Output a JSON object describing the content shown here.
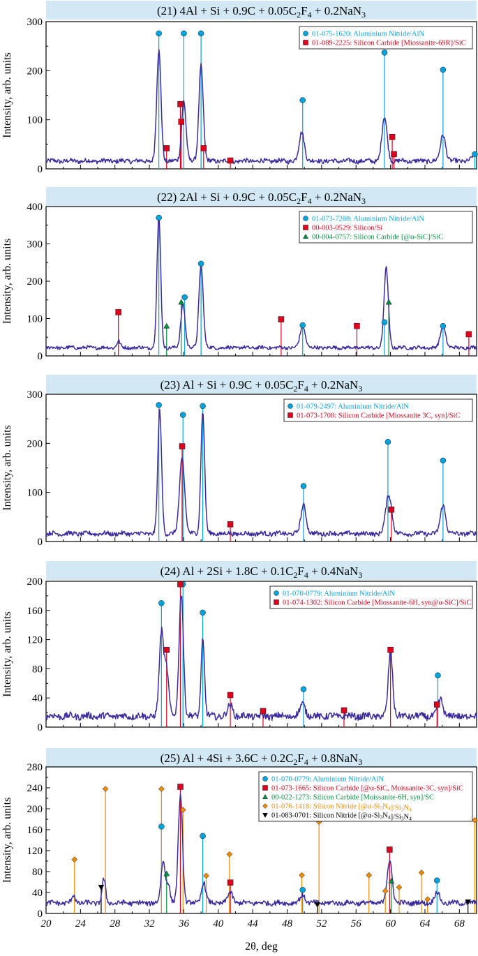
{
  "figure": {
    "xlabel": "2θ, deg"
  },
  "colors": {
    "trace": "#3b2b9e",
    "title_bg": "#d3e8f5",
    "AlN": "#00a3dd",
    "SiC": "#e0001b",
    "Si": "#e0001b",
    "SiC_green": "#00923f",
    "Si3N4_orange": "#f08a00",
    "Si3N4_black": "#000000"
  },
  "chart_data": [
    {
      "type": "line",
      "title": "(21) 4Al + Si + 0.9C + 0.05C2F4 + 0.2NaN3",
      "title_parts": [
        "(21) 4Al + Si + 0.9C + 0.05C",
        "2",
        "F",
        "4",
        " + 0.2NaN",
        "3"
      ],
      "ylabel": "Intensity, arb. units",
      "xlim": [
        20,
        70
      ],
      "ylim": [
        0,
        300
      ],
      "yticks": [
        0,
        100,
        200,
        300
      ],
      "xticks": [
        20,
        24,
        28,
        32,
        36,
        40,
        44,
        48,
        52,
        56,
        60,
        64,
        68
      ],
      "show_xticklabels": false,
      "baseline": 16,
      "peaks": [
        [
          33.1,
          240,
          0.25
        ],
        [
          36.0,
          140,
          0.25
        ],
        [
          38.0,
          212,
          0.25
        ],
        [
          49.7,
          75,
          0.3
        ],
        [
          59.3,
          105,
          0.3
        ],
        [
          66.1,
          70,
          0.3
        ],
        [
          69.8,
          30,
          0.3
        ]
      ],
      "legend": [
        {
          "text": "01-075-1620: Aluminium Nitride/AlN",
          "marker": "circle",
          "color": "#00a3dd"
        },
        {
          "text": "01-089-2225: Silicon Carbide [Miossanite-69R]/SiC",
          "marker": "square",
          "color": "#e0001b"
        }
      ],
      "references": [
        {
          "marker": "circle",
          "color": "#00a3dd",
          "lines": [
            [
              33.1,
              276
            ],
            [
              36.0,
              276
            ],
            [
              38.0,
              276
            ],
            [
              49.8,
              140
            ],
            [
              59.3,
              237
            ],
            [
              66.1,
              202
            ],
            [
              69.8,
              30
            ]
          ]
        },
        {
          "marker": "square",
          "color": "#e0001b",
          "lines": [
            [
              34.0,
              42
            ],
            [
              35.6,
              132
            ],
            [
              35.7,
              96
            ],
            [
              38.3,
              42
            ],
            [
              41.4,
              17
            ],
            [
              60.2,
              65
            ],
            [
              60.4,
              30
            ]
          ]
        }
      ]
    },
    {
      "type": "line",
      "title": "(22) 2Al + Si + 0.9C + 0.05C2F4 + 0.2NaN3",
      "title_parts": [
        "(22) 2Al + Si + 0.9C + 0.05C",
        "2",
        "F",
        "4",
        " + 0.2NaN",
        "3"
      ],
      "ylabel": "Intensity, arb. units",
      "xlim": [
        20,
        70
      ],
      "ylim": [
        0,
        400
      ],
      "yticks": [
        0,
        100,
        200,
        300,
        400
      ],
      "xticks": [
        20,
        24,
        28,
        32,
        36,
        40,
        44,
        48,
        52,
        56,
        60,
        64,
        68
      ],
      "show_xticklabels": false,
      "baseline": 22,
      "peaks": [
        [
          33.1,
          370,
          0.22
        ],
        [
          35.9,
          140,
          0.25
        ],
        [
          38.0,
          245,
          0.25
        ],
        [
          49.8,
          80,
          0.3
        ],
        [
          59.5,
          235,
          0.25
        ],
        [
          66.1,
          80,
          0.3
        ],
        [
          28.4,
          40,
          0.2
        ]
      ],
      "legend": [
        {
          "text": "01-073-7288: Aluminium Nitride/AlN",
          "marker": "circle",
          "color": "#00a3dd"
        },
        {
          "text": "00-003-0529: Silicon/Si",
          "marker": "square",
          "color": "#e0001b"
        },
        {
          "text": "00-004-0757: Silicon Carbide [@α-SiC]/SiC",
          "marker": "triangle",
          "color": "#00923f"
        }
      ],
      "references": [
        {
          "marker": "circle",
          "color": "#00a3dd",
          "lines": [
            [
              33.1,
              370
            ],
            [
              36.1,
              157
            ],
            [
              38.0,
              247
            ],
            [
              49.8,
              82
            ],
            [
              59.3,
              90
            ],
            [
              66.1,
              80
            ]
          ]
        },
        {
          "marker": "square",
          "color": "#e0001b",
          "lines": [
            [
              28.4,
              117
            ],
            [
              47.3,
              98
            ],
            [
              56.1,
              80
            ],
            [
              69.1,
              58
            ]
          ]
        },
        {
          "marker": "triangle",
          "color": "#00923f",
          "lines": [
            [
              34.0,
              80
            ],
            [
              35.7,
              144
            ],
            [
              59.8,
              144
            ]
          ]
        }
      ]
    },
    {
      "type": "line",
      "title": "(23) Al + Si + 0.9C + 0.05C2F4 + 0.2NaN3",
      "title_parts": [
        "(23) Al + Si + 0.9C + 0.05C",
        "2",
        "F",
        "4",
        " + 0.2NaN",
        "3"
      ],
      "ylabel": "Intensity, arb. units",
      "xlim": [
        20,
        70
      ],
      "ylim": [
        0,
        300
      ],
      "yticks": [
        0,
        100,
        200,
        300
      ],
      "xticks": [
        20,
        24,
        28,
        32,
        36,
        40,
        44,
        48,
        52,
        56,
        60,
        64,
        68
      ],
      "show_xticklabels": false,
      "baseline": 16,
      "peaks": [
        [
          33.2,
          265,
          0.22
        ],
        [
          35.8,
          170,
          0.3
        ],
        [
          38.2,
          265,
          0.22
        ],
        [
          49.9,
          75,
          0.3
        ],
        [
          59.8,
          95,
          0.35
        ],
        [
          66.1,
          75,
          0.3
        ]
      ],
      "legend": [
        {
          "text": "01-079-2497: Aluminium Nitride/AlN",
          "marker": "circle",
          "color": "#00a3dd"
        },
        {
          "text": "01-073-1708: Silicon Carbide [Miossanite 3C, syn]/SiC",
          "marker": "square",
          "color": "#e0001b"
        }
      ],
      "references": [
        {
          "marker": "circle",
          "color": "#00a3dd",
          "lines": [
            [
              33.1,
              278
            ],
            [
              35.9,
              258
            ],
            [
              38.2,
              276
            ],
            [
              49.9,
              113
            ],
            [
              59.7,
              203
            ],
            [
              66.1,
              165
            ]
          ]
        },
        {
          "marker": "square",
          "color": "#e0001b",
          "lines": [
            [
              35.8,
              194
            ],
            [
              41.4,
              35
            ],
            [
              60.1,
              65
            ]
          ]
        }
      ]
    },
    {
      "type": "line",
      "title": "(24) Al + 2Si + 1.8C + 0.1C2F4 + 0.4NaN3",
      "title_parts": [
        "(24) Al + 2Si + 1.8C + 0.1C",
        "2",
        "F",
        "4",
        " + 0.4NaN",
        "3"
      ],
      "ylabel": "Intensity, arb. units",
      "xlim": [
        20,
        70
      ],
      "ylim": [
        0,
        200
      ],
      "yticks": [
        0,
        40,
        80,
        120,
        160,
        200
      ],
      "xticks": [
        20,
        24,
        28,
        32,
        36,
        40,
        44,
        48,
        52,
        56,
        60,
        64,
        68
      ],
      "show_xticklabels": false,
      "baseline": 15,
      "peaks": [
        [
          33.4,
          130,
          0.25
        ],
        [
          34.0,
          80,
          0.25
        ],
        [
          35.7,
          185,
          0.25
        ],
        [
          38.2,
          120,
          0.2
        ],
        [
          41.4,
          30,
          0.3
        ],
        [
          49.8,
          33,
          0.3
        ],
        [
          60.0,
          105,
          0.25
        ],
        [
          65.8,
          38,
          0.3
        ]
      ],
      "legend": [
        {
          "text": "01-070-0779: Aluminium Nitride/AlN",
          "marker": "circle",
          "color": "#00a3dd"
        },
        {
          "text": "01-074-1302: Silicon Carbide [Miossanite-6H, syn@α-SiC]/SiC",
          "marker": "square",
          "color": "#e0001b"
        }
      ],
      "references": [
        {
          "marker": "circle",
          "color": "#00a3dd",
          "lines": [
            [
              33.4,
              170
            ],
            [
              35.9,
              196
            ],
            [
              38.2,
              157
            ],
            [
              49.9,
              52
            ],
            [
              65.5,
              71
            ]
          ]
        },
        {
          "marker": "square",
          "color": "#e0001b",
          "lines": [
            [
              34.0,
              106
            ],
            [
              35.6,
              196
            ],
            [
              41.4,
              44
            ],
            [
              45.2,
              22
            ],
            [
              54.6,
              23
            ],
            [
              60.0,
              106
            ],
            [
              65.4,
              31
            ]
          ]
        }
      ]
    },
    {
      "type": "line",
      "title": "(25) Al + 4Si + 3.6C + 0.2C2F4 + 0.8NaN3",
      "title_parts": [
        "(25) Al + 4Si + 3.6C + 0.2C",
        "2",
        "F",
        "4",
        " + 0.8NaN",
        "3"
      ],
      "ylabel": "Intensity, arb. units",
      "xlabel": "2θ, deg",
      "xlim": [
        20,
        70
      ],
      "ylim": [
        0,
        280
      ],
      "yticks": [
        0,
        40,
        80,
        120,
        160,
        200,
        240,
        280
      ],
      "xticks": [
        20,
        24,
        28,
        32,
        36,
        40,
        44,
        48,
        52,
        56,
        60,
        64,
        68
      ],
      "xticklabels": [
        "20",
        "24",
        "28",
        "32",
        "36",
        "40",
        "44",
        "48",
        "52",
        "56",
        "60",
        "64",
        "68"
      ],
      "show_xticklabels": true,
      "baseline": 20,
      "peaks": [
        [
          23.2,
          35,
          0.2
        ],
        [
          26.7,
          65,
          0.2
        ],
        [
          33.6,
          100,
          0.25
        ],
        [
          34.2,
          55,
          0.2
        ],
        [
          35.6,
          225,
          0.25
        ],
        [
          38.3,
          60,
          0.25
        ],
        [
          41.4,
          40,
          0.3
        ],
        [
          49.8,
          35,
          0.3
        ],
        [
          59.9,
          100,
          0.3
        ],
        [
          65.4,
          40,
          0.3
        ]
      ],
      "legend": [
        {
          "text": "01-070-0779: Aluminium Nitride/AlN",
          "marker": "circle",
          "color": "#00a3dd"
        },
        {
          "text": "01-073-1665: Silicon Carbide [@α-SiC, Moissanite-3C, syn]/SiC",
          "marker": "square",
          "color": "#e0001b"
        },
        {
          "text": "00-022-1273: Silicon Carbide [Moissanite-6H, syn]/SC",
          "marker": "triangle",
          "color": "#00923f"
        },
        {
          "text": "01-076-1418: Silicon Nitride [@α-Si3N4]/Si3N4",
          "marker": "diamond",
          "color": "#f08a00"
        },
        {
          "text": "01-083-0701: Silicon Nitride [@α-Si3N4]/Si3N4",
          "marker": "triangle-down",
          "color": "#000000"
        }
      ],
      "references": [
        {
          "marker": "circle",
          "color": "#00a3dd",
          "lines": [
            [
              33.4,
              166
            ],
            [
              38.2,
              148
            ],
            [
              49.8,
              45
            ],
            [
              65.4,
              63
            ]
          ]
        },
        {
          "marker": "square",
          "color": "#e0001b",
          "lines": [
            [
              35.6,
              242
            ],
            [
              41.4,
              59
            ],
            [
              59.9,
              122
            ]
          ]
        },
        {
          "marker": "triangle",
          "color": "#00923f",
          "lines": [
            [
              34.0,
              76
            ],
            [
              60.1,
              62
            ]
          ]
        },
        {
          "marker": "diamond",
          "color": "#f08a00",
          "lines": [
            [
              23.3,
              103
            ],
            [
              26.9,
              238
            ],
            [
              33.4,
              238
            ],
            [
              35.9,
              198
            ],
            [
              38.6,
              72
            ],
            [
              41.3,
              113
            ],
            [
              49.7,
              73
            ],
            [
              51.7,
              175
            ],
            [
              57.5,
              73
            ],
            [
              59.4,
              43
            ],
            [
              61.0,
              50
            ],
            [
              63.6,
              78
            ],
            [
              64.3,
              27
            ],
            [
              69.8,
              178
            ]
          ]
        },
        {
          "marker": "triangle-down",
          "color": "#000000",
          "lines": [
            [
              26.4,
              50
            ],
            [
              51.5,
              17
            ],
            [
              69.0,
              22
            ]
          ]
        }
      ]
    }
  ]
}
